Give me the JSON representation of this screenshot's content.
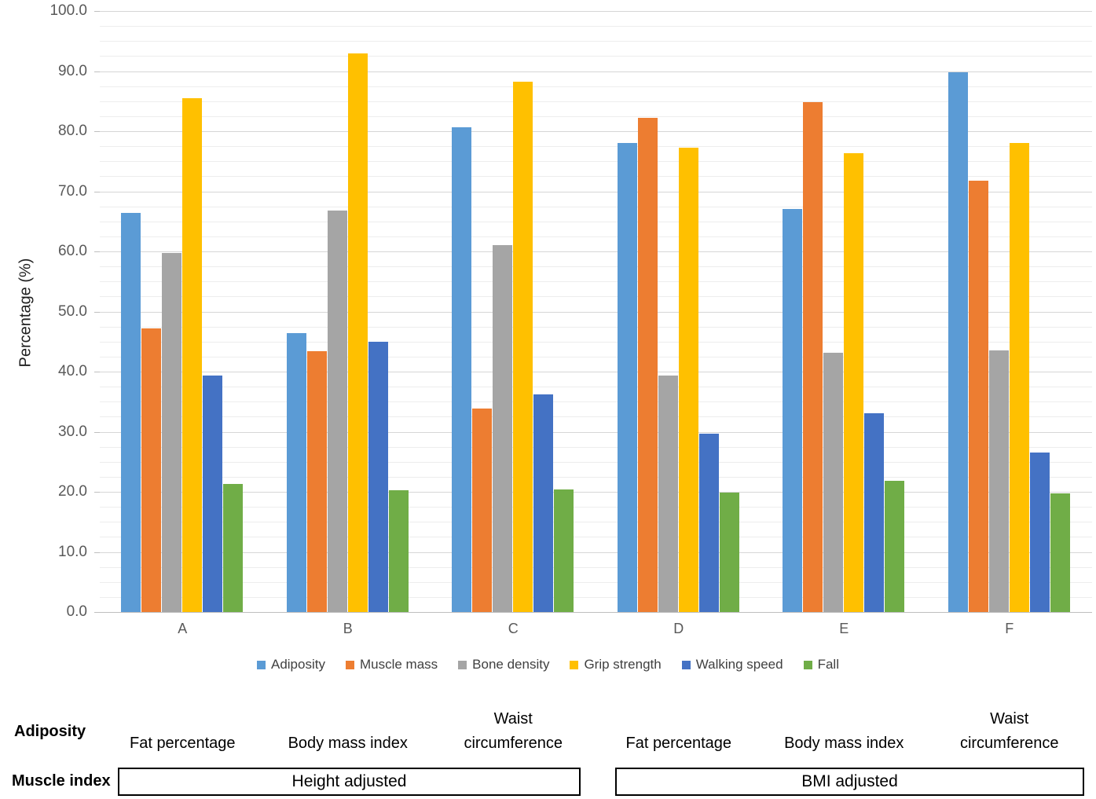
{
  "chart_data": {
    "type": "bar",
    "title": "",
    "ylabel": "Percentage (%)",
    "ylim": [
      0,
      100
    ],
    "ytick_step": 10,
    "minor_gridline_step": 2.5,
    "grid": true,
    "legend_position": "bottom",
    "categories": [
      "A",
      "B",
      "C",
      "D",
      "E",
      "F"
    ],
    "series": [
      {
        "name": "Adiposity",
        "color": "#5B9BD5",
        "values": [
          66.4,
          46.4,
          80.6,
          78.0,
          67.1,
          89.8
        ]
      },
      {
        "name": "Muscle mass",
        "color": "#ED7D31",
        "values": [
          47.2,
          43.4,
          33.8,
          82.2,
          84.9,
          71.8
        ]
      },
      {
        "name": "Bone density",
        "color": "#A5A5A5",
        "values": [
          59.7,
          66.8,
          61.0,
          39.3,
          43.2,
          43.5
        ]
      },
      {
        "name": "Grip strength",
        "color": "#FFC000",
        "values": [
          85.5,
          92.9,
          88.3,
          77.3,
          76.4,
          78.0
        ]
      },
      {
        "name": "Walking speed",
        "color": "#4472C4",
        "values": [
          39.3,
          45.0,
          36.2,
          29.7,
          33.1,
          26.5
        ]
      },
      {
        "name": "Fall",
        "color": "#70AD47",
        "values": [
          21.3,
          20.3,
          20.4,
          19.9,
          21.8,
          19.7
        ]
      }
    ]
  },
  "axis": {
    "ytick_labels": [
      "0.0",
      "10.0",
      "20.0",
      "30.0",
      "40.0",
      "50.0",
      "60.0",
      "70.0",
      "80.0",
      "90.0",
      "100.0"
    ]
  },
  "footer": {
    "adiposity_row": {
      "header": "Adiposity",
      "labels": [
        "Fat percentage",
        "Body mass index",
        "Waist\ncircumference",
        "Fat percentage",
        "Body mass index",
        "Waist\ncircumference"
      ]
    },
    "muscle_row": {
      "header": "Muscle index",
      "boxes": [
        "Height adjusted",
        "BMI adjusted"
      ]
    }
  }
}
